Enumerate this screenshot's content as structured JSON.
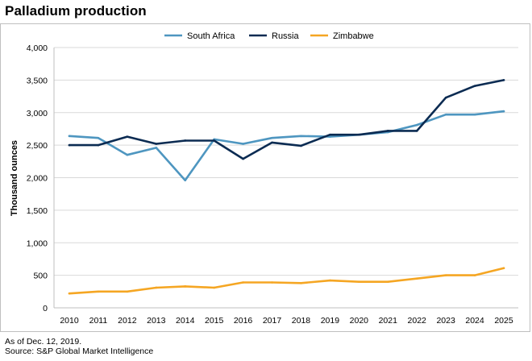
{
  "title": "Palladium production",
  "footer": {
    "note": "As of Dec. 12, 2019.",
    "source": "Source: S&P Global Market Intelligence"
  },
  "chart_data": {
    "type": "line",
    "title": "Palladium production",
    "xlabel": "",
    "ylabel": "Thousand ounces",
    "categories": [
      "2010",
      "2011",
      "2012",
      "2013",
      "2014",
      "2015",
      "2016",
      "2017",
      "2018",
      "2019",
      "2020",
      "2021",
      "2022",
      "2023",
      "2024",
      "2025"
    ],
    "ylim": [
      0,
      4000
    ],
    "yticks": [
      0,
      500,
      1000,
      1500,
      2000,
      2500,
      3000,
      3500,
      4000
    ],
    "ytick_labels": [
      "0",
      "500",
      "1,000",
      "1,500",
      "2,000",
      "2,500",
      "3,000",
      "3,500",
      "4,000"
    ],
    "grid": true,
    "legend_position": "top-center",
    "series": [
      {
        "name": "South Africa",
        "color": "#4e96c0",
        "values": [
          2640,
          2610,
          2350,
          2460,
          1960,
          2590,
          2520,
          2610,
          2640,
          2630,
          2660,
          2700,
          2810,
          2970,
          2970,
          3020
        ]
      },
      {
        "name": "Russia",
        "color": "#0b2b52",
        "values": [
          2500,
          2500,
          2630,
          2520,
          2570,
          2570,
          2290,
          2540,
          2490,
          2660,
          2660,
          2720,
          2720,
          3230,
          3410,
          3500
        ]
      },
      {
        "name": "Zimbabwe",
        "color": "#f5a623",
        "values": [
          220,
          250,
          250,
          310,
          330,
          310,
          390,
          390,
          380,
          420,
          400,
          400,
          450,
          500,
          500,
          610
        ]
      }
    ]
  }
}
